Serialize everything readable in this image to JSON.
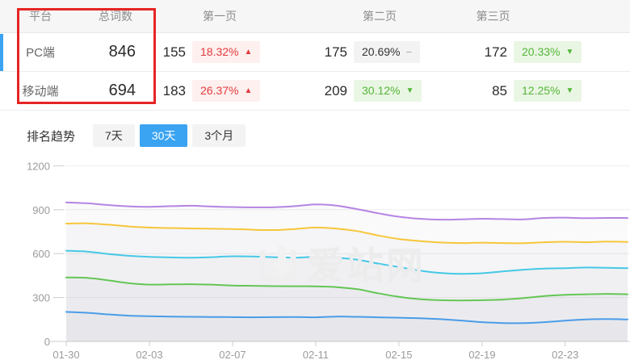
{
  "table": {
    "headers": [
      "平台",
      "总词数",
      "第一页",
      "第二页",
      "第三页"
    ],
    "rows": [
      {
        "platform": "PC端",
        "total": "846",
        "selected": true,
        "pages": [
          {
            "count": "155",
            "pct": "18.32%",
            "dir": "up",
            "arrow": "▲"
          },
          {
            "count": "175",
            "pct": "20.69%",
            "dir": "flat",
            "arrow": "−"
          },
          {
            "count": "172",
            "pct": "20.33%",
            "dir": "down",
            "arrow": "▼"
          }
        ]
      },
      {
        "platform": "移动端",
        "total": "694",
        "selected": false,
        "pages": [
          {
            "count": "183",
            "pct": "26.37%",
            "dir": "up",
            "arrow": "▲"
          },
          {
            "count": "209",
            "pct": "30.12%",
            "dir": "down",
            "arrow": "▼"
          },
          {
            "count": "85",
            "pct": "12.25%",
            "dir": "down",
            "arrow": "▼"
          }
        ]
      }
    ]
  },
  "trend": {
    "label": "排名趋势",
    "tabs": [
      {
        "label": "7天",
        "active": false
      },
      {
        "label": "30天",
        "active": true
      },
      {
        "label": "3个月",
        "active": false
      }
    ]
  },
  "watermark": {
    "text": "爱站网"
  },
  "colors": {
    "accent_blue": "#3ba4f2",
    "annotation_red": "#e62424",
    "up_red": "#e4393c",
    "down_green": "#53b637",
    "axis_label": "#9b9b9b",
    "gridline": "#ededed",
    "axis_line": "#cccccc"
  },
  "chart_data": {
    "type": "line",
    "title": "",
    "xlabel": "",
    "ylabel": "",
    "ylim": [
      0,
      1200
    ],
    "yticks": [
      0,
      300,
      600,
      900,
      1200
    ],
    "grid": true,
    "legend": false,
    "x_tick_labels": [
      "01-30",
      "02-03",
      "02-07",
      "02-11",
      "02-15",
      "02-19",
      "02-23"
    ],
    "x": [
      "01-30",
      "01-31",
      "02-01",
      "02-02",
      "02-03",
      "02-04",
      "02-05",
      "02-06",
      "02-07",
      "02-08",
      "02-09",
      "02-10",
      "02-11",
      "02-12",
      "02-13",
      "02-14",
      "02-15",
      "02-16",
      "02-17",
      "02-18",
      "02-19",
      "02-20",
      "02-21",
      "02-22",
      "02-23",
      "02-24",
      "02-25",
      "02-26"
    ],
    "series": [
      {
        "name": "purple",
        "color": "#b584e3",
        "values": [
          950,
          944,
          932,
          923,
          920,
          924,
          927,
          922,
          918,
          916,
          917,
          924,
          936,
          928,
          904,
          876,
          852,
          838,
          832,
          834,
          838,
          836,
          834,
          844,
          846,
          842,
          844,
          843
        ]
      },
      {
        "name": "yellow",
        "color": "#f6c63a",
        "values": [
          805,
          807,
          798,
          786,
          778,
          775,
          772,
          770,
          768,
          763,
          761,
          768,
          778,
          771,
          754,
          724,
          700,
          686,
          676,
          672,
          675,
          672,
          671,
          678,
          681,
          678,
          682,
          680
        ]
      },
      {
        "name": "cyan",
        "color": "#45c8e6",
        "values": [
          620,
          614,
          598,
          585,
          578,
          574,
          572,
          576,
          582,
          580,
          576,
          572,
          578,
          572,
          558,
          532,
          508,
          484,
          468,
          462,
          466,
          478,
          490,
          498,
          501,
          505,
          503,
          500
        ]
      },
      {
        "name": "green",
        "color": "#64c654",
        "values": [
          437,
          434,
          418,
          398,
          388,
          390,
          391,
          388,
          382,
          380,
          378,
          377,
          376,
          371,
          357,
          329,
          305,
          289,
          282,
          280,
          282,
          286,
          296,
          310,
          318,
          322,
          325,
          322
        ]
      },
      {
        "name": "blue",
        "color": "#4a9ce8",
        "values": [
          202,
          196,
          185,
          176,
          172,
          170,
          168,
          167,
          166,
          165,
          166,
          167,
          165,
          170,
          168,
          165,
          162,
          158,
          152,
          143,
          132,
          126,
          125,
          132,
          142,
          150,
          153,
          150
        ]
      }
    ]
  }
}
